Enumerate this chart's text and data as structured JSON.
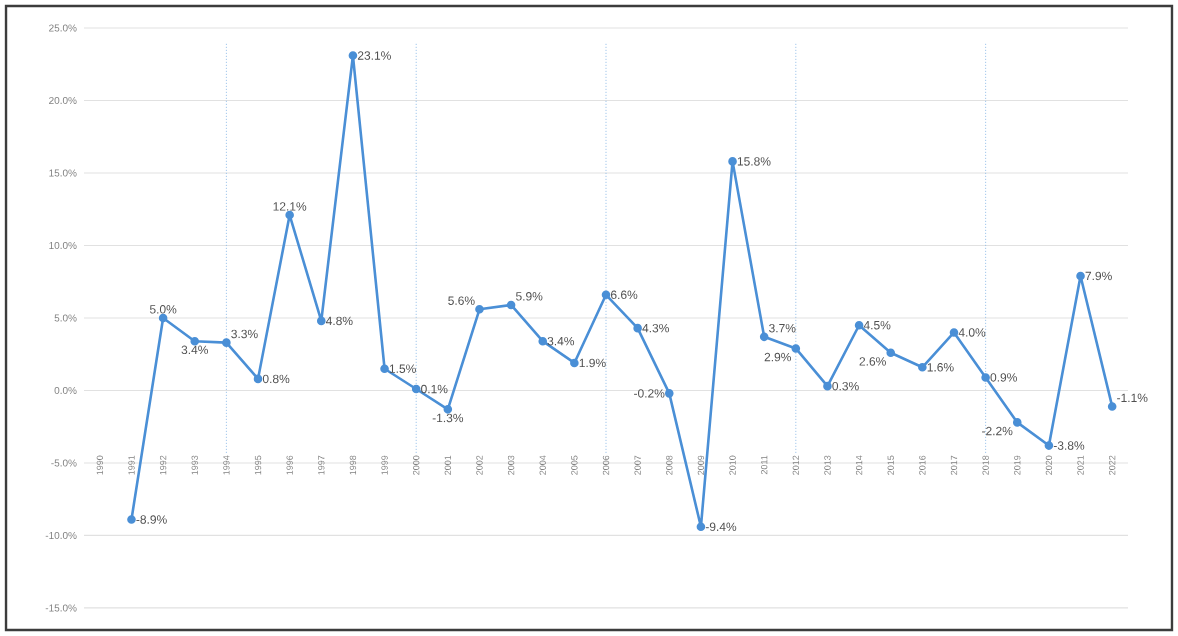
{
  "chart_data": {
    "type": "line",
    "categories": [
      "1990",
      "1991",
      "1992",
      "1993",
      "1994",
      "1995",
      "1996",
      "1997",
      "1998",
      "1999",
      "2000",
      "2001",
      "2002",
      "2003",
      "2004",
      "2005",
      "2006",
      "2007",
      "2008",
      "2009",
      "2010",
      "2011",
      "2012",
      "2013",
      "2014",
      "2015",
      "2016",
      "2017",
      "2018",
      "2019",
      "2020",
      "2021",
      "2022"
    ],
    "series": [
      {
        "color": "#4a8fd6",
        "values": [
          null,
          -8.9,
          5.0,
          3.4,
          3.3,
          0.8,
          12.1,
          4.8,
          23.1,
          1.5,
          0.1,
          -1.3,
          5.6,
          5.9,
          3.4,
          1.9,
          6.6,
          4.3,
          -0.2,
          -9.4,
          15.8,
          3.7,
          2.9,
          0.3,
          4.5,
          2.6,
          1.6,
          4.0,
          0.9,
          -2.2,
          -3.8,
          7.9,
          -1.1
        ],
        "value_labels": [
          null,
          "-8.9%",
          "5.0%",
          "3.4%",
          "3.3%",
          "0.8%",
          "12.1%",
          "4.8%",
          "23.1%",
          "1.5%",
          "0.1%",
          "-1.3%",
          "5.6%",
          "5.9%",
          "3.4%",
          "1.9%",
          "6.6%",
          "4.3%",
          "-0.2%",
          "-9.4%",
          "15.8%",
          "3.7%",
          "2.9%",
          "0.3%",
          "4.5%",
          "2.6%",
          "1.6%",
          "4.0%",
          "0.9%",
          "-2.2%",
          "-3.8%",
          "7.9%",
          "-1.1%"
        ]
      }
    ],
    "ylim": [
      -15,
      25
    ],
    "yticks": [
      {
        "value": -15,
        "label": "-15.0%"
      },
      {
        "value": -10,
        "label": "-10.0%"
      },
      {
        "value": -5,
        "label": "-5.0%"
      },
      {
        "value": 0,
        "label": "0.0%"
      },
      {
        "value": 5,
        "label": "5.0%"
      },
      {
        "value": 10,
        "label": "10.0%"
      },
      {
        "value": 15,
        "label": "15.0%"
      },
      {
        "value": 20,
        "label": "20.0%"
      },
      {
        "value": 25,
        "label": "25.0%"
      }
    ],
    "grid": "y",
    "marker": "circle",
    "line_style": "solid",
    "ref_lines": [
      {
        "axis": "x",
        "value": "1994",
        "color": "#8fbbe8",
        "line_style": "dotted"
      },
      {
        "axis": "x",
        "value": "2000",
        "color": "#8fbbe8",
        "line_style": "dotted"
      },
      {
        "axis": "x",
        "value": "2006",
        "color": "#8fbbe8",
        "line_style": "dotted"
      },
      {
        "axis": "x",
        "value": "2012",
        "color": "#8fbbe8",
        "line_style": "dotted"
      },
      {
        "axis": "x",
        "value": "2018",
        "color": "#8fbbe8",
        "line_style": "dotted"
      }
    ]
  }
}
